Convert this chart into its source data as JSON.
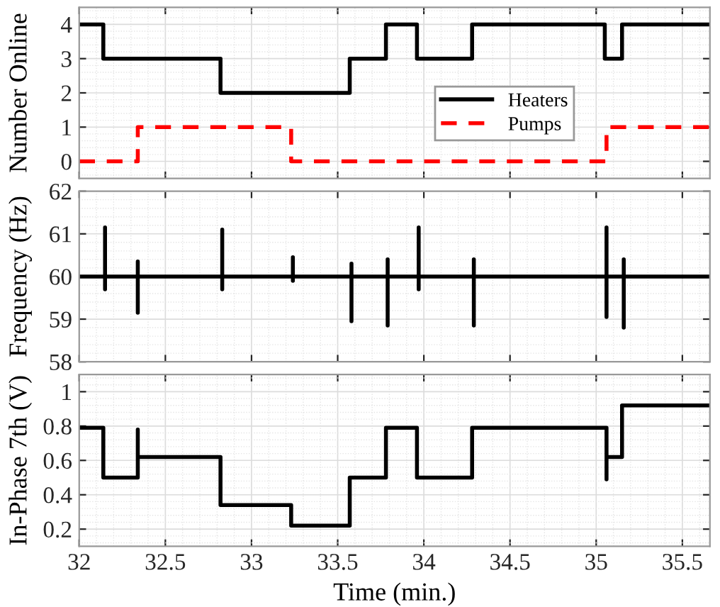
{
  "chart_data": [
    {
      "type": "step",
      "ylabel": "Number Online",
      "xlim": [
        32,
        35.66
      ],
      "xticks": [
        32,
        32.5,
        33,
        33.5,
        34,
        34.5,
        35,
        35.5
      ],
      "ylim": [
        -0.5,
        4.5
      ],
      "yticks": [
        0,
        1,
        2,
        3,
        4
      ],
      "grid": true,
      "legend": "right",
      "tick_labels": "y",
      "series": [
        {
          "name": "Heaters",
          "color": "#000000",
          "line_style": "solid",
          "x": [
            32,
            32.14,
            32.82,
            33.57,
            33.78,
            33.96,
            34.28,
            35.05,
            35.15,
            35.66
          ],
          "values": [
            4,
            3,
            2,
            3,
            4,
            3,
            4,
            3,
            4,
            4
          ]
        },
        {
          "name": "Pumps",
          "color": "#ff0000",
          "line_style": "dashed",
          "x": [
            32,
            32.34,
            33.23,
            35.06,
            35.66
          ],
          "values": [
            0,
            1,
            0,
            1,
            1
          ]
        }
      ]
    },
    {
      "type": "line",
      "ylabel": "Frequency (Hz)",
      "xlim": [
        32,
        35.66
      ],
      "xticks": [
        32,
        32.5,
        33,
        33.5,
        34,
        34.5,
        35,
        35.5
      ],
      "ylim": [
        58,
        62
      ],
      "yticks": [
        58,
        59,
        60,
        61,
        62
      ],
      "grid": true,
      "tick_labels": "y",
      "series": [
        {
          "color": "#000000",
          "x": [
            32,
            32.15,
            32.15,
            32.15,
            32.15,
            32.34,
            32.34,
            32.34,
            32.34,
            32.83,
            32.83,
            32.83,
            32.83,
            33.24,
            33.24,
            33.24,
            33.24,
            33.58,
            33.58,
            33.58,
            33.58,
            33.79,
            33.79,
            33.79,
            33.79,
            33.97,
            33.97,
            33.97,
            33.97,
            34.29,
            34.29,
            34.29,
            34.29,
            35.06,
            35.06,
            35.06,
            35.06,
            35.16,
            35.16,
            35.16,
            35.16,
            35.66
          ],
          "values": [
            60,
            60,
            61.15,
            59.7,
            60,
            60,
            60.35,
            59.15,
            60,
            60,
            61.1,
            59.7,
            60,
            60,
            60.45,
            59.9,
            60,
            60,
            60.3,
            58.95,
            60,
            60,
            60.4,
            58.85,
            60,
            60,
            61.15,
            59.7,
            60,
            60,
            60.4,
            58.85,
            60,
            60,
            61.15,
            59.05,
            60,
            60,
            60.4,
            58.8,
            60,
            60
          ]
        }
      ]
    },
    {
      "type": "line",
      "ylabel": "In-Phase 7th (V)",
      "xlabel": "Time (min.)",
      "xlim": [
        32,
        35.66
      ],
      "xticks": [
        32,
        32.5,
        33,
        33.5,
        34,
        34.5,
        35,
        35.5
      ],
      "ylim": [
        0.1,
        1.1
      ],
      "yticks": [
        0.2,
        0.4,
        0.6,
        0.8,
        1
      ],
      "grid": true,
      "series": [
        {
          "color": "#000000",
          "x": [
            32,
            32.14,
            32.14,
            32.34,
            32.34,
            32.34,
            32.82,
            32.82,
            33.23,
            33.23,
            33.57,
            33.57,
            33.78,
            33.78,
            33.96,
            33.96,
            34.28,
            34.28,
            35.06,
            35.06,
            35.06,
            35.15,
            35.15,
            35.66
          ],
          "values": [
            0.79,
            0.79,
            0.5,
            0.5,
            0.78,
            0.62,
            0.62,
            0.34,
            0.34,
            0.22,
            0.22,
            0.5,
            0.5,
            0.79,
            0.79,
            0.5,
            0.5,
            0.79,
            0.79,
            0.49,
            0.62,
            0.62,
            0.92,
            0.92
          ]
        }
      ]
    }
  ]
}
